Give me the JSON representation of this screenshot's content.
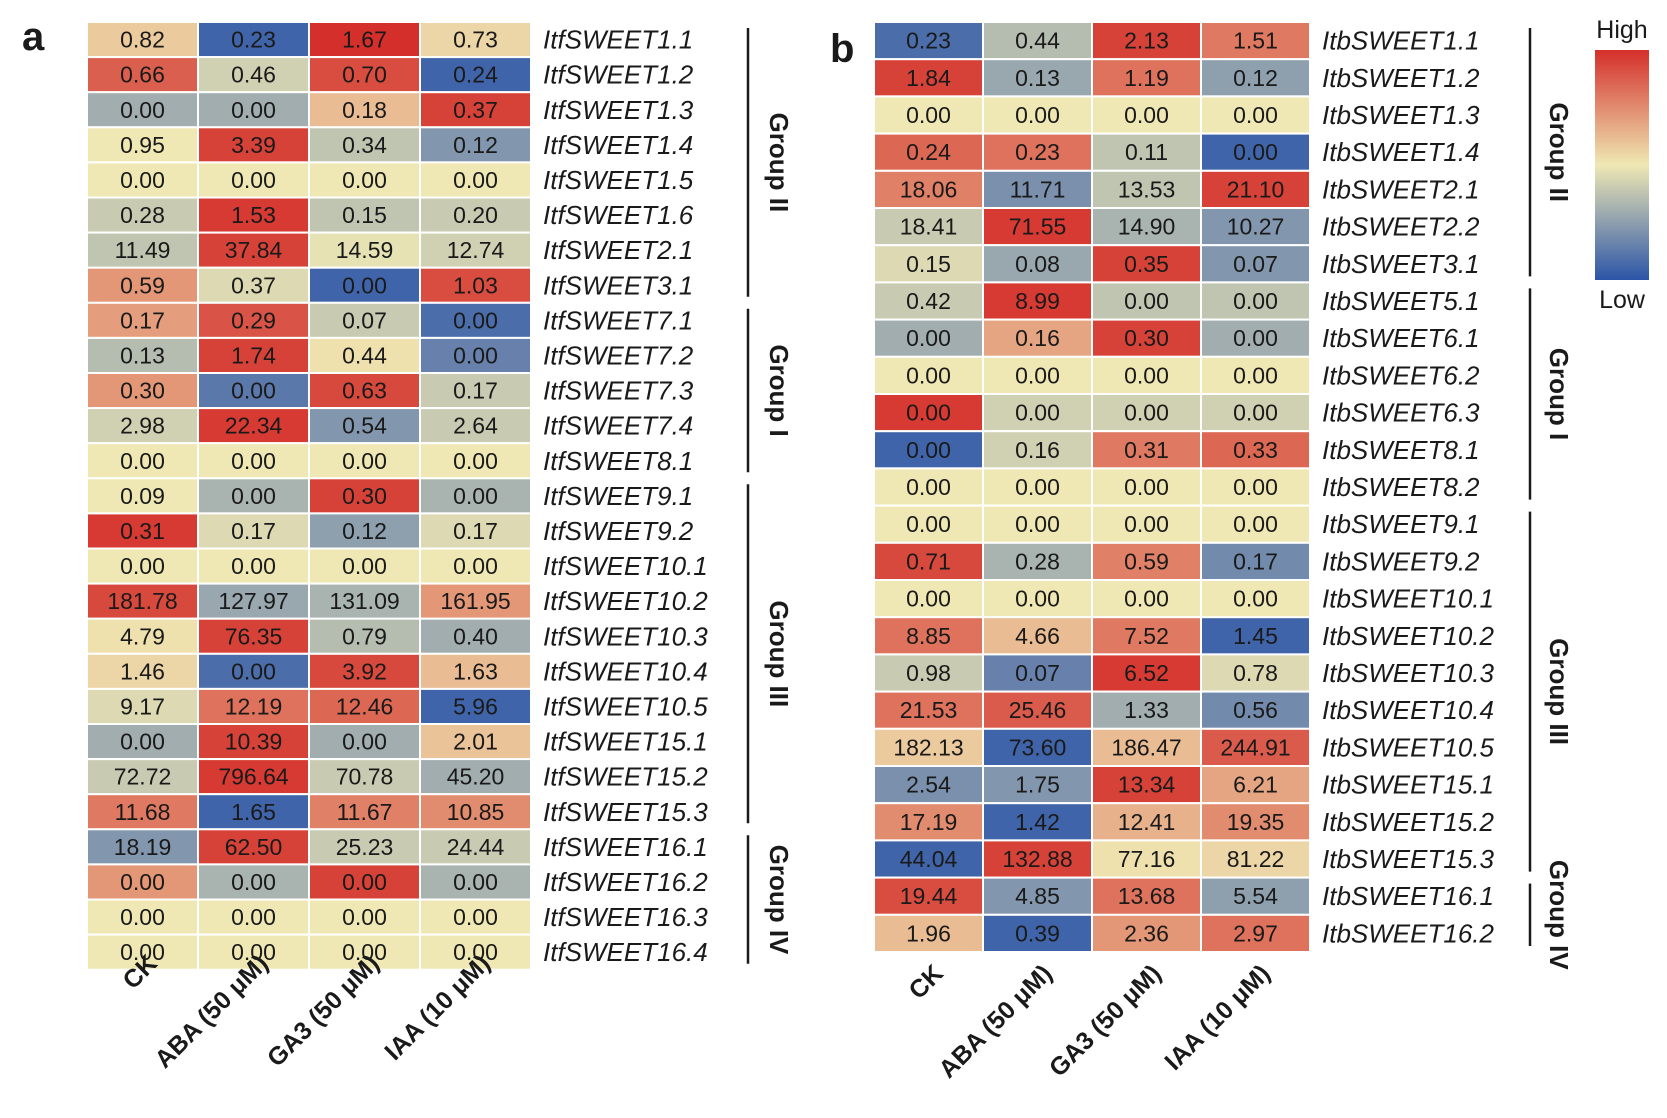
{
  "figure": {
    "legend": {
      "high": "High",
      "low": "Low"
    },
    "colors": {
      "low": "#2c55a8",
      "mid": "#efe8b4",
      "high": "#d42f2a",
      "text": "#1a1a1a",
      "cell_border": "#ffffff"
    }
  },
  "chart_data": [
    {
      "type": "heatmap",
      "panel_label": "a",
      "columns": [
        "CK",
        "ABA (50 μM)",
        "GA3 (50 μM)",
        "IAA (10 μM)"
      ],
      "rows": [
        "ItfSWEET1.1",
        "ItfSWEET1.2",
        "ItfSWEET1.3",
        "ItfSWEET1.4",
        "ItfSWEET1.5",
        "ItfSWEET1.6",
        "ItfSWEET2.1",
        "ItfSWEET3.1",
        "ItfSWEET7.1",
        "ItfSWEET7.2",
        "ItfSWEET7.3",
        "ItfSWEET7.4",
        "ItfSWEET8.1",
        "ItfSWEET9.1",
        "ItfSWEET9.2",
        "ItfSWEET10.1",
        "ItfSWEET10.2",
        "ItfSWEET10.3",
        "ItfSWEET10.4",
        "ItfSWEET10.5",
        "ItfSWEET15.1",
        "ItfSWEET15.2",
        "ItfSWEET15.3",
        "ItfSWEET16.1",
        "ItfSWEET16.2",
        "ItfSWEET16.3",
        "ItfSWEET16.4"
      ],
      "values": [
        [
          "0.82",
          "0.23",
          "1.67",
          "0.73"
        ],
        [
          "0.66",
          "0.46",
          "0.70",
          "0.24"
        ],
        [
          "0.00",
          "0.00",
          "0.18",
          "0.37"
        ],
        [
          "0.95",
          "3.39",
          "0.34",
          "0.12"
        ],
        [
          "0.00",
          "0.00",
          "0.00",
          "0.00"
        ],
        [
          "0.28",
          "1.53",
          "0.15",
          "0.20"
        ],
        [
          "11.49",
          "37.84",
          "14.59",
          "12.74"
        ],
        [
          "0.59",
          "0.37",
          "0.00",
          "1.03"
        ],
        [
          "0.17",
          "0.29",
          "0.07",
          "0.00"
        ],
        [
          "0.13",
          "1.74",
          "0.44",
          "0.00"
        ],
        [
          "0.30",
          "0.00",
          "0.63",
          "0.17"
        ],
        [
          "2.98",
          "22.34",
          "0.54",
          "2.64"
        ],
        [
          "0.00",
          "0.00",
          "0.00",
          "0.00"
        ],
        [
          "0.09",
          "0.00",
          "0.30",
          "0.00"
        ],
        [
          "0.31",
          "0.17",
          "0.12",
          "0.17"
        ],
        [
          "0.00",
          "0.00",
          "0.00",
          "0.00"
        ],
        [
          "181.78",
          "127.97",
          "131.09",
          "161.95"
        ],
        [
          "4.79",
          "76.35",
          "0.79",
          "0.40"
        ],
        [
          "1.46",
          "0.00",
          "3.92",
          "1.63"
        ],
        [
          "9.17",
          "12.19",
          "12.46",
          "5.96"
        ],
        [
          "0.00",
          "10.39",
          "0.00",
          "2.01"
        ],
        [
          "72.72",
          "796.64",
          "70.78",
          "45.20"
        ],
        [
          "11.68",
          "1.65",
          "11.67",
          "10.85"
        ],
        [
          "18.19",
          "62.50",
          "25.23",
          "24.44"
        ],
        [
          "0.00",
          "0.00",
          "0.00",
          "0.00"
        ],
        [
          "0.00",
          "0.00",
          "0.00",
          "0.00"
        ],
        [
          "0.00",
          "0.00",
          "0.00",
          "0.00"
        ]
      ],
      "color_scale": [
        [
          0.58,
          0.05,
          1.0,
          0.55
        ],
        [
          0.87,
          0.42,
          0.92,
          0.05
        ],
        [
          0.3,
          0.3,
          0.62,
          0.95
        ],
        [
          0.5,
          0.95,
          0.38,
          0.22
        ],
        [
          0.5,
          0.5,
          0.5,
          0.5
        ],
        [
          0.4,
          0.97,
          0.38,
          0.4
        ],
        [
          0.38,
          0.95,
          0.48,
          0.42
        ],
        [
          0.72,
          0.45,
          0.05,
          0.92
        ],
        [
          0.7,
          0.9,
          0.4,
          0.08
        ],
        [
          0.35,
          0.95,
          0.52,
          0.15
        ],
        [
          0.72,
          0.12,
          0.93,
          0.4
        ],
        [
          0.42,
          0.97,
          0.22,
          0.4
        ],
        [
          0.5,
          0.5,
          0.5,
          0.5
        ],
        [
          0.5,
          0.32,
          0.95,
          0.32
        ],
        [
          0.97,
          0.45,
          0.25,
          0.45
        ],
        [
          0.5,
          0.5,
          0.5,
          0.5
        ],
        [
          0.93,
          0.28,
          0.32,
          0.72
        ],
        [
          0.52,
          0.95,
          0.35,
          0.3
        ],
        [
          0.55,
          0.08,
          0.93,
          0.62
        ],
        [
          0.45,
          0.82,
          0.85,
          0.05
        ],
        [
          0.3,
          0.95,
          0.3,
          0.6
        ],
        [
          0.4,
          0.97,
          0.4,
          0.3
        ],
        [
          0.8,
          0.05,
          0.78,
          0.75
        ],
        [
          0.22,
          0.95,
          0.4,
          0.4
        ],
        [
          0.72,
          0.32,
          0.95,
          0.32
        ],
        [
          0.5,
          0.5,
          0.5,
          0.5
        ],
        [
          0.5,
          0.5,
          0.5,
          0.5
        ]
      ],
      "groups": [
        {
          "label": "Group II",
          "from_row": "ItfSWEET1.1",
          "to_row": "ItfSWEET3.1"
        },
        {
          "label": "Group I",
          "from_row": "ItfSWEET7.1",
          "to_row": "ItfSWEET8.1"
        },
        {
          "label": "Group III",
          "from_row": "ItfSWEET9.1",
          "to_row": "ItfSWEET15.3"
        },
        {
          "label": "Group IV",
          "from_row": "ItfSWEET16.1",
          "to_row": "ItfSWEET16.4"
        }
      ]
    },
    {
      "type": "heatmap",
      "panel_label": "b",
      "columns": [
        "CK",
        "ABA (50 μM)",
        "GA3 (50 μM)",
        "IAA (10 μM)"
      ],
      "rows": [
        "ItbSWEET1.1",
        "ItbSWEET1.2",
        "ItbSWEET1.3",
        "ItbSWEET1.4",
        "ItbSWEET2.1",
        "ItbSWEET2.2",
        "ItbSWEET3.1",
        "ItbSWEET5.1",
        "ItbSWEET6.1",
        "ItbSWEET6.2",
        "ItbSWEET6.3",
        "ItbSWEET8.1",
        "ItbSWEET8.2",
        "ItbSWEET9.1",
        "ItbSWEET9.2",
        "ItbSWEET10.1",
        "ItbSWEET10.2",
        "ItbSWEET10.3",
        "ItbSWEET10.4",
        "ItbSWEET10.5",
        "ItbSWEET15.1",
        "ItbSWEET15.2",
        "ItbSWEET15.3",
        "ItbSWEET16.1",
        "ItbSWEET16.2"
      ],
      "values": [
        [
          "0.23",
          "0.44",
          "2.13",
          "1.51"
        ],
        [
          "1.84",
          "0.13",
          "1.19",
          "0.12"
        ],
        [
          "0.00",
          "0.00",
          "0.00",
          "0.00"
        ],
        [
          "0.24",
          "0.23",
          "0.11",
          "0.00"
        ],
        [
          "18.06",
          "11.71",
          "13.53",
          "21.10"
        ],
        [
          "18.41",
          "71.55",
          "14.90",
          "10.27"
        ],
        [
          "0.15",
          "0.08",
          "0.35",
          "0.07"
        ],
        [
          "0.42",
          "8.99",
          "0.00",
          "0.00"
        ],
        [
          "0.00",
          "0.16",
          "0.30",
          "0.00"
        ],
        [
          "0.00",
          "0.00",
          "0.00",
          "0.00"
        ],
        [
          "0.00",
          "0.00",
          "0.00",
          "0.00"
        ],
        [
          "0.00",
          "0.16",
          "0.31",
          "0.33"
        ],
        [
          "0.00",
          "0.00",
          "0.00",
          "0.00"
        ],
        [
          "0.00",
          "0.00",
          "0.00",
          "0.00"
        ],
        [
          "0.71",
          "0.28",
          "0.59",
          "0.17"
        ],
        [
          "0.00",
          "0.00",
          "0.00",
          "0.00"
        ],
        [
          "8.85",
          "4.66",
          "7.52",
          "1.45"
        ],
        [
          "0.98",
          "0.07",
          "6.52",
          "0.78"
        ],
        [
          "21.53",
          "25.46",
          "1.33",
          "0.56"
        ],
        [
          "182.13",
          "73.60",
          "186.47",
          "244.91"
        ],
        [
          "2.54",
          "1.75",
          "13.34",
          "6.21"
        ],
        [
          "17.19",
          "1.42",
          "12.41",
          "19.35"
        ],
        [
          "44.04",
          "132.88",
          "77.16",
          "81.22"
        ],
        [
          "19.44",
          "4.85",
          "13.68",
          "5.54"
        ],
        [
          "1.96",
          "0.39",
          "2.36",
          "2.97"
        ]
      ],
      "color_scale": [
        [
          0.08,
          0.35,
          0.95,
          0.8
        ],
        [
          0.95,
          0.28,
          0.82,
          0.25
        ],
        [
          0.5,
          0.5,
          0.5,
          0.5
        ],
        [
          0.85,
          0.82,
          0.38,
          0.05
        ],
        [
          0.78,
          0.2,
          0.38,
          0.95
        ],
        [
          0.4,
          0.97,
          0.32,
          0.22
        ],
        [
          0.45,
          0.28,
          0.95,
          0.22
        ],
        [
          0.4,
          0.97,
          0.38,
          0.38
        ],
        [
          0.3,
          0.68,
          0.95,
          0.3
        ],
        [
          0.5,
          0.5,
          0.5,
          0.5
        ],
        [
          0.97,
          0.42,
          0.42,
          0.42
        ],
        [
          0.05,
          0.42,
          0.8,
          0.85
        ],
        [
          0.5,
          0.5,
          0.5,
          0.5
        ],
        [
          0.5,
          0.5,
          0.5,
          0.5
        ],
        [
          0.93,
          0.32,
          0.78,
          0.18
        ],
        [
          0.5,
          0.5,
          0.5,
          0.5
        ],
        [
          0.82,
          0.62,
          0.8,
          0.05
        ],
        [
          0.4,
          0.15,
          0.97,
          0.45
        ],
        [
          0.82,
          0.88,
          0.3,
          0.18
        ],
        [
          0.58,
          0.05,
          0.62,
          0.88
        ],
        [
          0.2,
          0.22,
          0.95,
          0.68
        ],
        [
          0.75,
          0.05,
          0.65,
          0.75
        ],
        [
          0.05,
          0.95,
          0.52,
          0.55
        ],
        [
          0.92,
          0.22,
          0.82,
          0.25
        ],
        [
          0.62,
          0.05,
          0.72,
          0.82
        ]
      ],
      "groups": [
        {
          "label": "Group II",
          "from_row": "ItbSWEET1.1",
          "to_row": "ItbSWEET3.1"
        },
        {
          "label": "Group I",
          "from_row": "ItbSWEET5.1",
          "to_row": "ItbSWEET8.2"
        },
        {
          "label": "Group III",
          "from_row": "ItbSWEET9.1",
          "to_row": "ItbSWEET15.3"
        },
        {
          "label": "Group IV",
          "from_row": "ItbSWEET16.1",
          "to_row": "ItbSWEET16.2"
        }
      ]
    }
  ]
}
